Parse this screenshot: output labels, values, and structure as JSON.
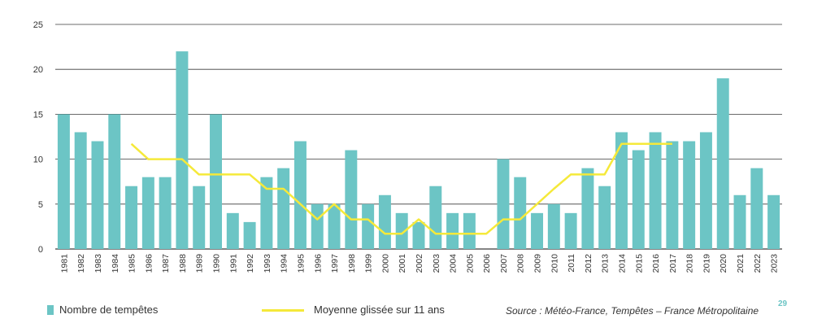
{
  "chart_data": {
    "type": "bar",
    "categories": [
      "1981",
      "1982",
      "1983",
      "1984",
      "1985",
      "1986",
      "1987",
      "1988",
      "1989",
      "1990",
      "1991",
      "1992",
      "1993",
      "1994",
      "1995",
      "1996",
      "1997",
      "1998",
      "1999",
      "2000",
      "2001",
      "2002",
      "2003",
      "2004",
      "2005",
      "2006",
      "2007",
      "2008",
      "2009",
      "2010",
      "2011",
      "2012",
      "2013",
      "2014",
      "2015",
      "2016",
      "2017",
      "2018",
      "2019",
      "2020",
      "2021",
      "2022",
      "2023"
    ],
    "series": [
      {
        "name": "Nombre de tempêtes",
        "type": "bar",
        "color": "#6cc5c5",
        "values": [
          15,
          13,
          12,
          15,
          7,
          8,
          8,
          22,
          7,
          15,
          4,
          3,
          8,
          9,
          12,
          5,
          5,
          11,
          5,
          6,
          4,
          3,
          7,
          4,
          4,
          0,
          10,
          8,
          4,
          5,
          4,
          9,
          7,
          13,
          11,
          13,
          12,
          12,
          13,
          19,
          6,
          9,
          6
        ]
      },
      {
        "name": "Moyenne glissée sur 11 ans",
        "type": "line",
        "color": "#f5e93a",
        "values": [
          null,
          null,
          null,
          null,
          11.7,
          10,
          10,
          10,
          8.3,
          8.3,
          8.3,
          8.3,
          6.7,
          6.7,
          5,
          3.3,
          5,
          3.3,
          3.3,
          1.7,
          1.7,
          3.3,
          1.7,
          1.7,
          1.7,
          1.7,
          3.3,
          3.3,
          5,
          6.7,
          8.3,
          8.3,
          8.3,
          11.7,
          11.7,
          11.7,
          11.7,
          null,
          null,
          null,
          null,
          null,
          null
        ]
      }
    ],
    "ylim": [
      0,
      25
    ],
    "yticks": [
      0,
      5,
      10,
      15,
      20,
      25
    ],
    "grid": true,
    "legend_position": "bottom-left"
  },
  "legend": {
    "bar_label": "Nombre de tempêtes",
    "line_label": "Moyenne glissée sur 11 ans"
  },
  "source": "Source : Météo-France, Tempêtes – France Métropolitaine",
  "page_number": "29",
  "colors": {
    "bar": "#6cc5c5",
    "line": "#f5e93a",
    "grid": "#3a3a3a",
    "page_number": "#6cc5c5"
  }
}
